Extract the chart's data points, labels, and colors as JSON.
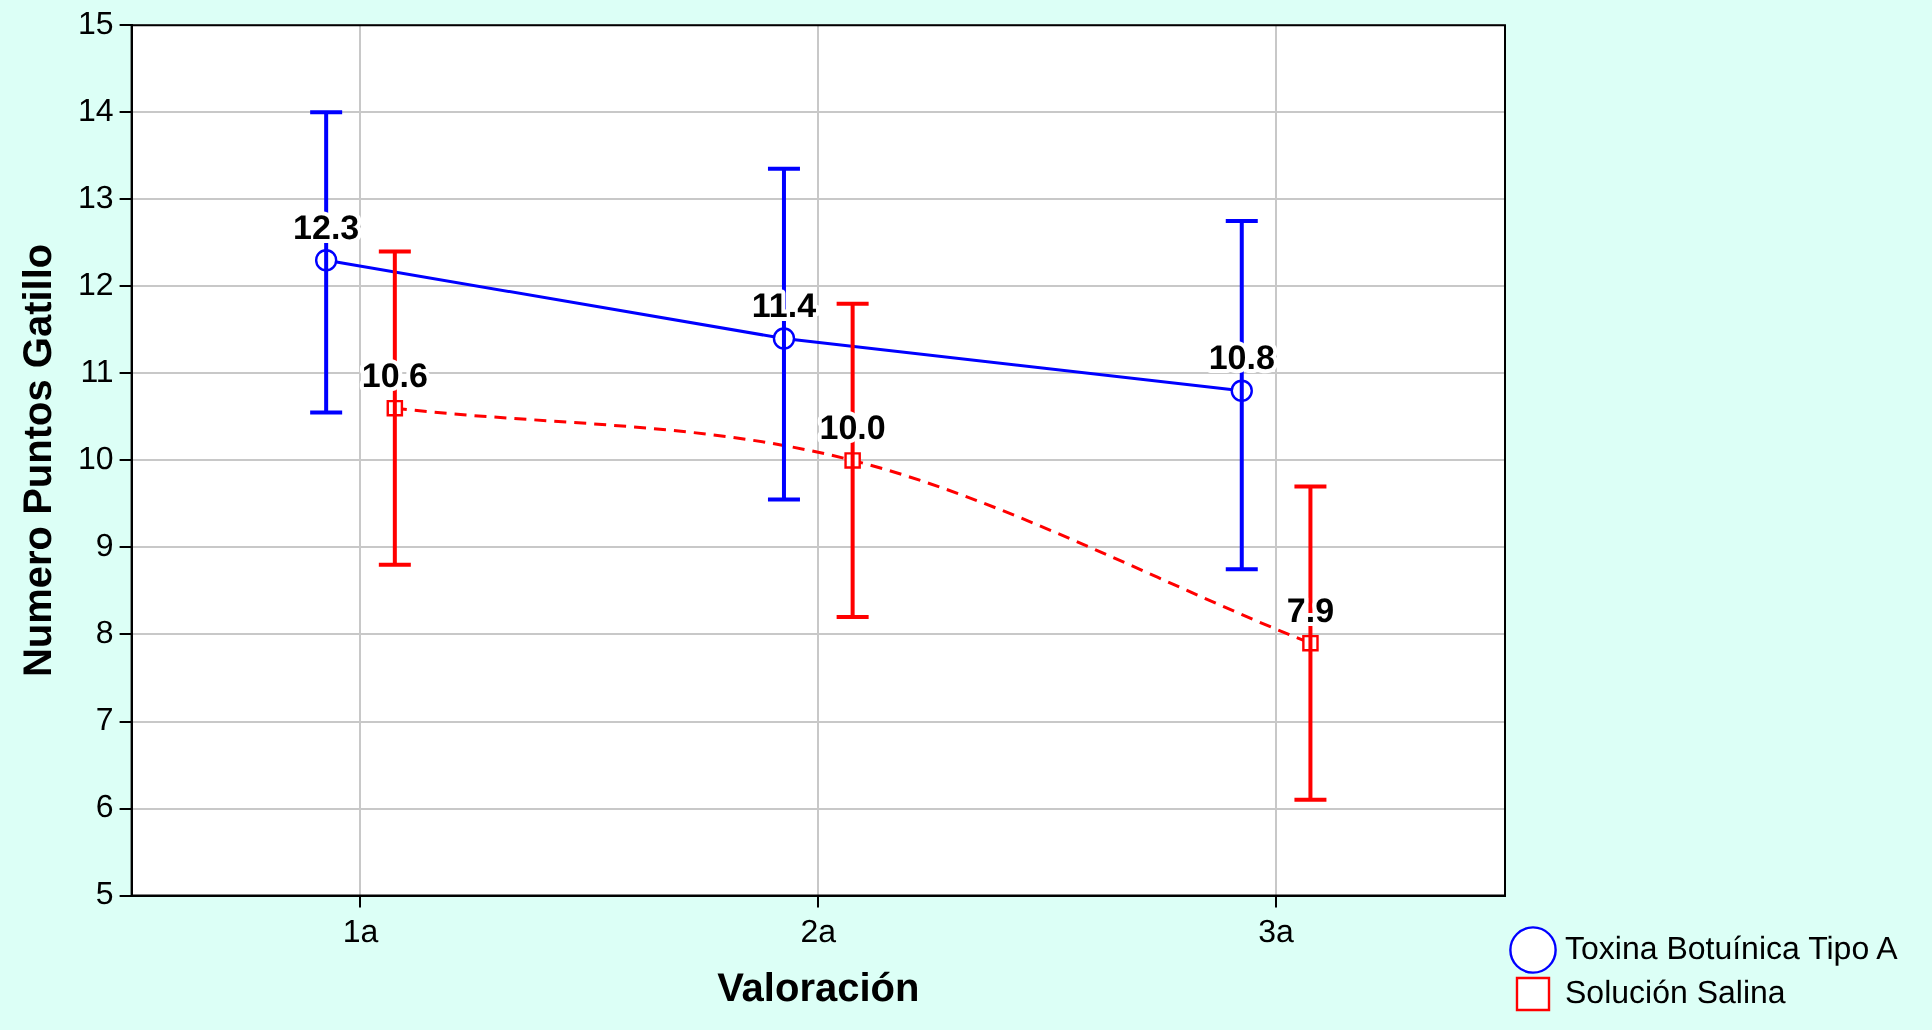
{
  "chart_data": {
    "type": "line",
    "xlabel": "Valoración",
    "ylabel": "Numero Puntos Gatillo",
    "categories": [
      "1a",
      "2a",
      "3a"
    ],
    "series": [
      {
        "name": "Toxina Botuínica Tipo A",
        "color": "#0000ff",
        "values": [
          12.3,
          11.4,
          10.8
        ],
        "errors": [
          [
            10.55,
            14.0
          ],
          [
            9.55,
            13.35
          ],
          [
            8.75,
            12.75
          ]
        ],
        "value_labels": [
          "12.3",
          "11.4",
          "10.8"
        ],
        "marker": "circle",
        "line_style": "solid"
      },
      {
        "name": "Solución Salina",
        "color": "#ff0000",
        "values": [
          10.6,
          10.0,
          7.9
        ],
        "errors": [
          [
            8.8,
            12.4
          ],
          [
            8.2,
            11.8
          ],
          [
            6.1,
            9.7
          ]
        ],
        "value_labels": [
          "10.6",
          "10.0",
          "7.9"
        ],
        "marker": "square",
        "line_style": "dashed"
      }
    ],
    "ylim": [
      5,
      15
    ],
    "yticks": [
      5,
      6,
      7,
      8,
      9,
      10,
      11,
      12,
      13,
      14,
      15
    ],
    "grid": true,
    "legend": "bottom right"
  }
}
